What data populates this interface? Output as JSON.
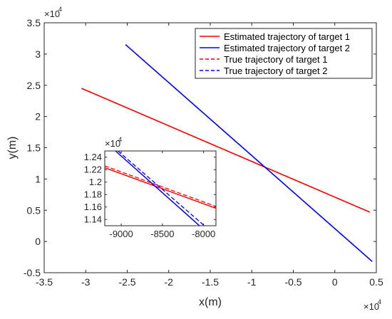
{
  "chart_data": [
    {
      "type": "line",
      "xlabel": "x(m)",
      "ylabel": "y(m)",
      "x_multiplier": "×10",
      "x_multiplier_exp": "4",
      "y_multiplier": "×10",
      "y_multiplier_exp": "4",
      "xlim": [
        -3.5,
        0.5
      ],
      "ylim": [
        -0.5,
        3.5
      ],
      "x_ticks": [
        "-3.5",
        "-3",
        "-2.5",
        "-2",
        "-1.5",
        "-1",
        "-0.5",
        "0",
        "0.5"
      ],
      "y_ticks": [
        "-0.5",
        "0",
        "0.5",
        "1",
        "1.5",
        "2",
        "2.5",
        "3",
        "3.5"
      ],
      "grid": false,
      "legend_position": "top-right",
      "series": [
        {
          "name": "Estimated trajectory of target 1",
          "color": "#ff0000",
          "style": "solid",
          "x": [
            -3.05,
            0.42
          ],
          "y": [
            2.45,
            0.47
          ]
        },
        {
          "name": "Estimated trajectory of target 2",
          "color": "#0000ff",
          "style": "solid",
          "x": [
            -2.52,
            0.45
          ],
          "y": [
            3.15,
            -0.32
          ]
        },
        {
          "name": "True trajectory of target 1",
          "color": "#ff0000",
          "style": "dashed",
          "x": [
            -3.05,
            0.42
          ],
          "y": [
            2.45,
            0.47
          ]
        },
        {
          "name": "True trajectory of target 2",
          "color": "#0000ff",
          "style": "dashed",
          "x": [
            -2.52,
            0.45
          ],
          "y": [
            3.15,
            -0.32
          ]
        }
      ]
    },
    {
      "type": "line",
      "role": "inset",
      "x_multiplier": "×10",
      "x_multiplier_exp": "4",
      "xlim": [
        -9200,
        -7850
      ],
      "ylim": [
        1.13,
        1.25
      ],
      "x_ticks": [
        "-9000",
        "-8500",
        "-8000"
      ],
      "x_tick_values": [
        -9000,
        -8500,
        -8000
      ],
      "y_ticks": [
        "1.14",
        "1.16",
        "1.18",
        "1.2",
        "1.22",
        "1.24"
      ],
      "y_tick_values": [
        1.14,
        1.16,
        1.18,
        1.2,
        1.22,
        1.24
      ],
      "series": [
        {
          "name": "Estimated trajectory of target 1",
          "color": "#ff0000",
          "style": "solid",
          "x": [
            -9200,
            -7850
          ],
          "y": [
            1.223,
            1.158
          ]
        },
        {
          "name": "Estimated trajectory of target 2",
          "color": "#0000ff",
          "style": "solid",
          "x": [
            -9070,
            -8050
          ],
          "y": [
            1.25,
            1.13
          ]
        },
        {
          "name": "True trajectory of target 1",
          "color": "#ff0000",
          "style": "dashed",
          "x": [
            -9200,
            -7850
          ],
          "y": [
            1.226,
            1.161
          ]
        },
        {
          "name": "True trajectory of target 2",
          "color": "#0000ff",
          "style": "dashed",
          "x": [
            -9040,
            -8000
          ],
          "y": [
            1.25,
            1.131
          ]
        }
      ]
    }
  ]
}
